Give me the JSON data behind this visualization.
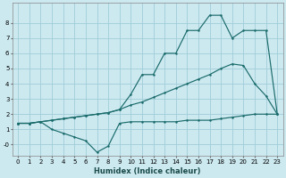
{
  "xlabel": "Humidex (Indice chaleur)",
  "bg_color": "#cce9f0",
  "grid_color": "#a0cdd8",
  "line_color": "#1a6b6b",
  "xlim": [
    -0.5,
    23.5
  ],
  "ylim": [
    -0.75,
    9.3
  ],
  "xticks": [
    0,
    1,
    2,
    3,
    4,
    5,
    6,
    7,
    8,
    9,
    10,
    11,
    12,
    13,
    14,
    15,
    16,
    17,
    18,
    19,
    20,
    21,
    22,
    23
  ],
  "ytick_vals": [
    0,
    1,
    2,
    3,
    4,
    5,
    6,
    7,
    8
  ],
  "ytick_labels": [
    "-0",
    "1",
    "2",
    "3",
    "4",
    "5",
    "6",
    "7",
    "8"
  ],
  "s1_x": [
    0,
    1,
    2,
    3,
    4,
    5,
    6,
    7,
    8,
    9,
    10,
    11,
    12,
    13,
    14,
    15,
    16,
    17,
    18,
    19,
    20,
    21,
    22,
    23
  ],
  "s1_y": [
    1.4,
    1.4,
    1.5,
    1.0,
    0.75,
    0.5,
    0.25,
    -0.5,
    -0.1,
    1.4,
    1.5,
    1.5,
    1.5,
    1.5,
    1.5,
    1.6,
    1.6,
    1.6,
    1.7,
    1.8,
    1.9,
    2.0,
    2.0,
    2.0
  ],
  "s2_x": [
    0,
    1,
    2,
    3,
    4,
    5,
    6,
    7,
    8,
    9,
    10,
    11,
    12,
    13,
    14,
    15,
    16,
    17,
    18,
    19,
    20,
    21,
    22,
    23
  ],
  "s2_y": [
    1.4,
    1.4,
    1.5,
    1.6,
    1.7,
    1.8,
    1.9,
    2.0,
    2.1,
    2.3,
    2.6,
    2.8,
    3.1,
    3.4,
    3.7,
    4.0,
    4.3,
    4.6,
    5.0,
    5.3,
    5.2,
    4.0,
    3.2,
    2.0
  ],
  "s3_x": [
    0,
    1,
    2,
    3,
    4,
    5,
    6,
    7,
    8,
    9,
    10,
    11,
    12,
    13,
    14,
    15,
    16,
    17,
    18,
    19,
    20,
    21,
    22,
    23
  ],
  "s3_y": [
    1.4,
    1.4,
    1.5,
    1.6,
    1.7,
    1.8,
    1.9,
    2.0,
    2.1,
    2.3,
    3.3,
    4.6,
    4.6,
    6.0,
    6.0,
    7.5,
    7.5,
    8.5,
    8.5,
    7.0,
    7.5,
    7.5,
    7.5,
    2.0
  ]
}
